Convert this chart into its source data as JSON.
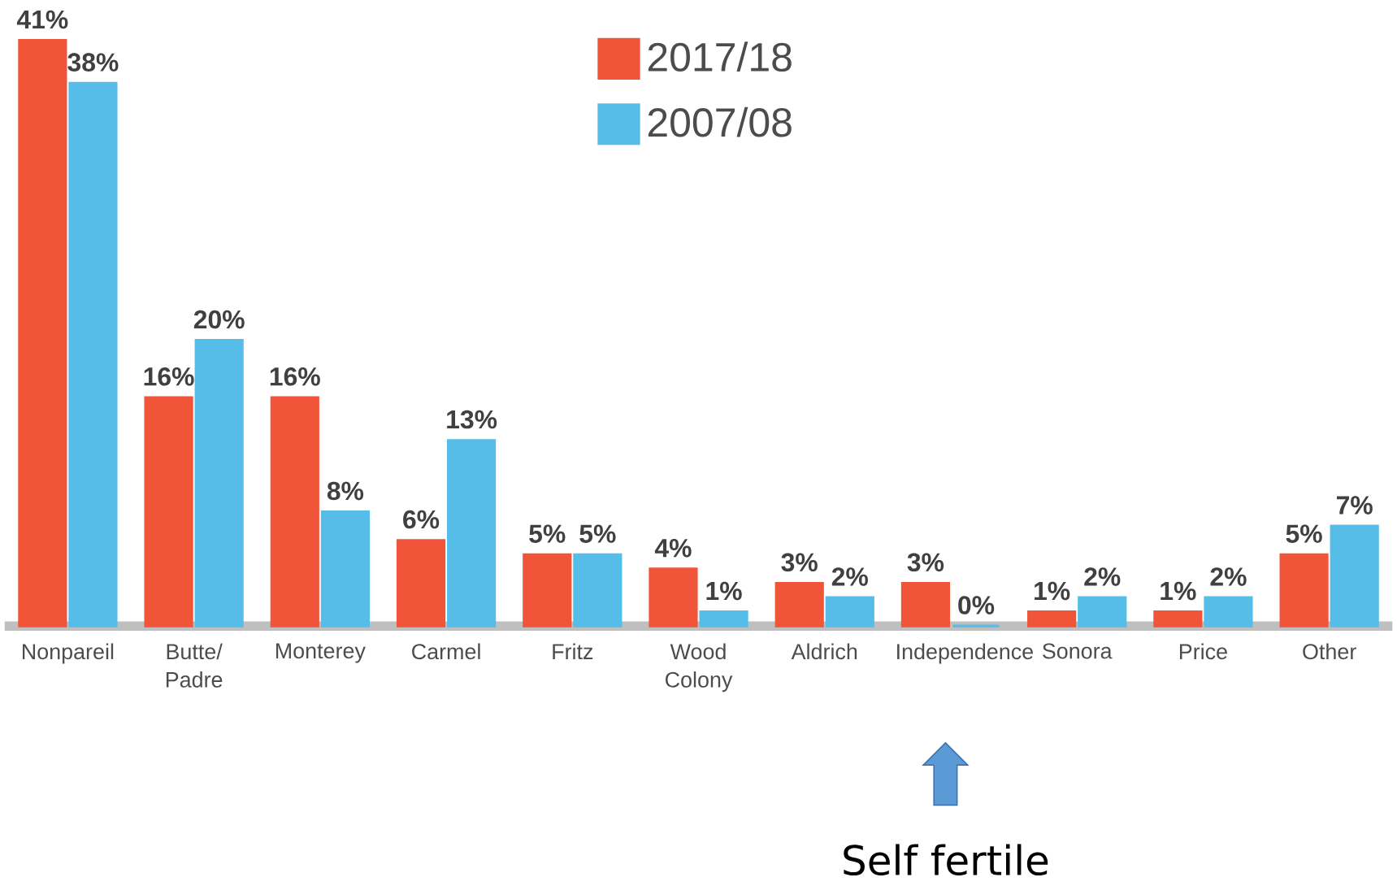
{
  "chart_data": {
    "type": "bar",
    "categories": [
      "Nonpareil",
      "Butte/ Padre",
      "Monterey",
      "Carmel",
      "Fritz",
      "Wood Colony",
      "Aldrich",
      "Independence",
      "Sonora",
      "Price",
      "Other"
    ],
    "series": [
      {
        "name": "2017/18",
        "color": "#f0553a",
        "values": [
          41,
          16,
          16,
          6,
          5,
          4,
          3,
          3,
          1,
          1,
          5
        ],
        "value_labels": [
          "41%",
          "16%",
          "16%",
          "6%",
          "5%",
          "4%",
          "3%",
          "3%",
          "1%",
          "1%",
          "5%"
        ]
      },
      {
        "name": "2007/08",
        "color": "#56bde8",
        "values": [
          38,
          20,
          8,
          13,
          5,
          1,
          2,
          0,
          2,
          2,
          7
        ],
        "value_labels": [
          "38%",
          "20%",
          "8%",
          "13%",
          "5%",
          "1%",
          "2%",
          "0%",
          "2%",
          "2%",
          "7%"
        ]
      }
    ],
    "legend": "top",
    "annotations": [
      "Self fertile"
    ]
  }
}
